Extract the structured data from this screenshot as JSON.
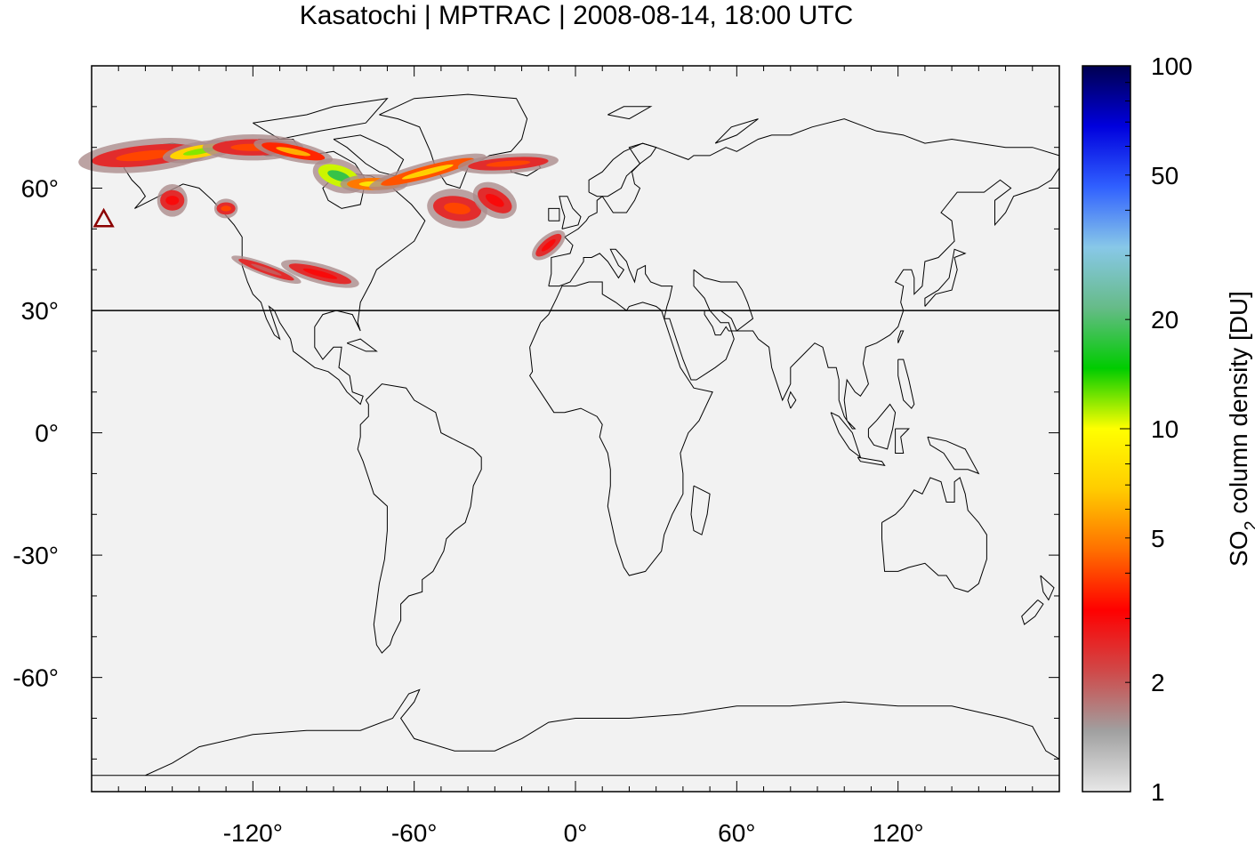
{
  "title": "Kasatochi | MPTRAC | 2008-08-14, 18:00 UTC",
  "map": {
    "lon_range": [
      -180,
      180
    ],
    "lat_range": [
      -88,
      90
    ],
    "reference_latitude": 30,
    "volcano_marker": {
      "name": "triangle",
      "lon": -175.5,
      "lat": 52.2,
      "color": "#8b0000"
    },
    "x_ticks": [
      {
        "value": -120,
        "label": "-120°"
      },
      {
        "value": -60,
        "label": "-60°"
      },
      {
        "value": 0,
        "label": "0°"
      },
      {
        "value": 60,
        "label": "60°"
      },
      {
        "value": 120,
        "label": "120°"
      }
    ],
    "y_ticks": [
      {
        "value": 60,
        "label": "60°"
      },
      {
        "value": 30,
        "label": "30°"
      },
      {
        "value": 0,
        "label": "0°"
      },
      {
        "value": -30,
        "label": "-30°"
      },
      {
        "value": -60,
        "label": "-60°"
      }
    ]
  },
  "colorbar": {
    "title_prefix": "SO",
    "title_sub": "2",
    "title_suffix": " column density [DU]",
    "scale": "log",
    "range": [
      1,
      100
    ],
    "ticks": [
      {
        "value": 1,
        "label": "1"
      },
      {
        "value": 2,
        "label": "2"
      },
      {
        "value": 5,
        "label": "5"
      },
      {
        "value": 10,
        "label": "10"
      },
      {
        "value": 20,
        "label": "20"
      },
      {
        "value": 50,
        "label": "50"
      },
      {
        "value": 100,
        "label": "100"
      }
    ],
    "colors": [
      "#e8e8e8",
      "#a0a0a0",
      "#d04848",
      "#ff0000",
      "#ff7000",
      "#ffcc00",
      "#ffff00",
      "#00cc00",
      "#66bb88",
      "#88c8e8",
      "#3060ff",
      "#0000dd",
      "#000050"
    ]
  },
  "plumes": [
    {
      "lon": -160,
      "lat": 68,
      "value": 4,
      "w": 40,
      "h": 5,
      "rot": -6
    },
    {
      "lon": -140,
      "lat": 69,
      "value": 12,
      "w": 22,
      "h": 3,
      "rot": -10
    },
    {
      "lon": -120,
      "lat": 70,
      "value": 4,
      "w": 30,
      "h": 4,
      "rot": 0
    },
    {
      "lon": -105,
      "lat": 69,
      "value": 6,
      "w": 24,
      "h": 3,
      "rot": 12
    },
    {
      "lon": -88,
      "lat": 63,
      "value": 18,
      "w": 16,
      "h": 5,
      "rot": 18
    },
    {
      "lon": -75,
      "lat": 61,
      "value": 8,
      "w": 20,
      "h": 3,
      "rot": 0
    },
    {
      "lon": -55,
      "lat": 64,
      "value": 7,
      "w": 36,
      "h": 3,
      "rot": -15
    },
    {
      "lon": -25,
      "lat": 66,
      "value": 4,
      "w": 30,
      "h": 3,
      "rot": -4
    },
    {
      "lon": -44,
      "lat": 55,
      "value": 4,
      "w": 18,
      "h": 6,
      "rot": 8
    },
    {
      "lon": -30,
      "lat": 57,
      "value": 3,
      "w": 14,
      "h": 5,
      "rot": 30
    },
    {
      "lon": -10,
      "lat": 46,
      "value": 3,
      "w": 12,
      "h": 3,
      "rot": -40
    },
    {
      "lon": -150,
      "lat": 57,
      "value": 3,
      "w": 9,
      "h": 5,
      "rot": 0
    },
    {
      "lon": -130,
      "lat": 55,
      "value": 4,
      "w": 7,
      "h": 3,
      "rot": 0
    },
    {
      "lon": -95,
      "lat": 39,
      "value": 3,
      "w": 24,
      "h": 3,
      "rot": 15
    },
    {
      "lon": -115,
      "lat": 40,
      "value": 2,
      "w": 22,
      "h": 2,
      "rot": 20
    }
  ]
}
